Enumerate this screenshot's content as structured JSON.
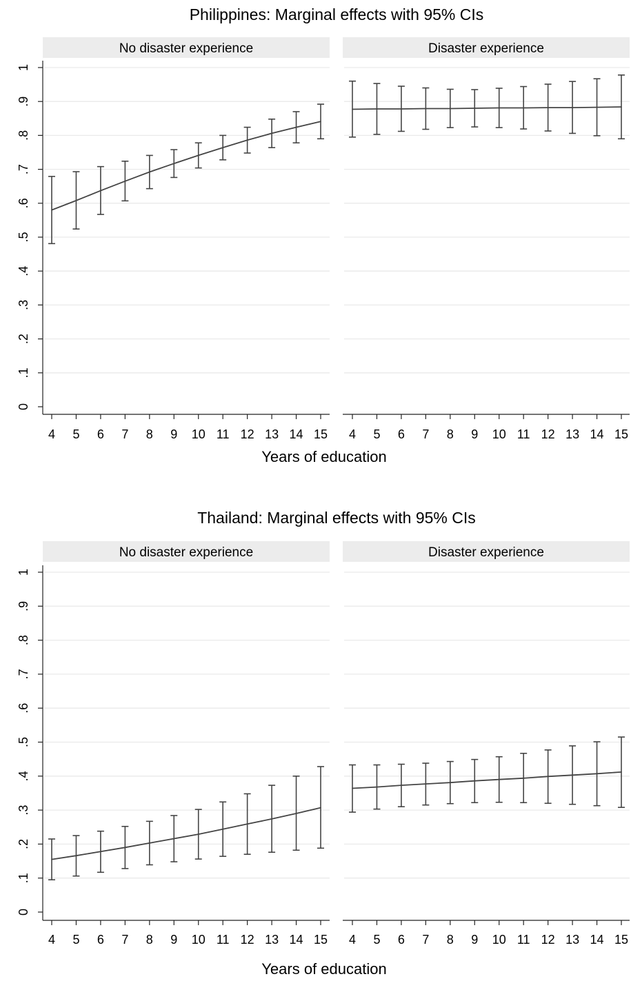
{
  "chart_data": [
    {
      "type": "line",
      "title": "Philippines: Marginal effects with 95% CIs",
      "xlabel": "Years of education",
      "ylabel": "",
      "x": [
        4,
        5,
        6,
        7,
        8,
        9,
        10,
        11,
        12,
        13,
        14,
        15
      ],
      "ylim": [
        0,
        1
      ],
      "yticks": [
        "0",
        ".1",
        ".2",
        ".3",
        ".4",
        ".5",
        ".6",
        ".7",
        ".8",
        ".9",
        "1"
      ],
      "grid": true,
      "panels": [
        {
          "label": "No disaster experience",
          "estimate": [
            0.58,
            0.608,
            0.637,
            0.665,
            0.692,
            0.717,
            0.741,
            0.764,
            0.786,
            0.806,
            0.824,
            0.841
          ],
          "ci_lower": [
            0.481,
            0.524,
            0.567,
            0.607,
            0.643,
            0.676,
            0.704,
            0.728,
            0.748,
            0.764,
            0.778,
            0.79
          ],
          "ci_upper": [
            0.679,
            0.693,
            0.708,
            0.724,
            0.741,
            0.758,
            0.778,
            0.8,
            0.824,
            0.848,
            0.87,
            0.892
          ]
        },
        {
          "label": "Disaster experience",
          "estimate": [
            0.877,
            0.878,
            0.878,
            0.879,
            0.879,
            0.88,
            0.881,
            0.881,
            0.882,
            0.882,
            0.883,
            0.884
          ],
          "ci_lower": [
            0.795,
            0.803,
            0.812,
            0.818,
            0.823,
            0.825,
            0.823,
            0.819,
            0.813,
            0.806,
            0.799,
            0.79
          ],
          "ci_upper": [
            0.96,
            0.953,
            0.945,
            0.94,
            0.936,
            0.935,
            0.939,
            0.944,
            0.951,
            0.959,
            0.967,
            0.978
          ]
        }
      ]
    },
    {
      "type": "line",
      "title": "Thailand: Marginal effects with 95% CIs",
      "xlabel": "Years of education",
      "ylabel": "",
      "x": [
        4,
        5,
        6,
        7,
        8,
        9,
        10,
        11,
        12,
        13,
        14,
        15
      ],
      "ylim": [
        0,
        1
      ],
      "yticks": [
        "0",
        ".1",
        ".2",
        ".3",
        ".4",
        ".5",
        ".6",
        ".7",
        ".8",
        ".9",
        "1"
      ],
      "grid": true,
      "panels": [
        {
          "label": "No disaster experience",
          "estimate": [
            0.155,
            0.166,
            0.178,
            0.19,
            0.203,
            0.216,
            0.229,
            0.244,
            0.259,
            0.274,
            0.29,
            0.307
          ],
          "ci_lower": [
            0.095,
            0.106,
            0.117,
            0.128,
            0.139,
            0.148,
            0.156,
            0.164,
            0.17,
            0.176,
            0.182,
            0.188
          ],
          "ci_upper": [
            0.215,
            0.225,
            0.238,
            0.252,
            0.267,
            0.284,
            0.302,
            0.324,
            0.348,
            0.373,
            0.4,
            0.428
          ]
        },
        {
          "label": "Disaster experience",
          "estimate": [
            0.364,
            0.368,
            0.373,
            0.377,
            0.381,
            0.386,
            0.39,
            0.394,
            0.399,
            0.403,
            0.407,
            0.412
          ],
          "ci_lower": [
            0.294,
            0.303,
            0.31,
            0.315,
            0.319,
            0.322,
            0.323,
            0.322,
            0.32,
            0.317,
            0.313,
            0.308
          ],
          "ci_upper": [
            0.433,
            0.433,
            0.435,
            0.438,
            0.443,
            0.449,
            0.457,
            0.467,
            0.477,
            0.489,
            0.501,
            0.515
          ]
        }
      ]
    }
  ]
}
